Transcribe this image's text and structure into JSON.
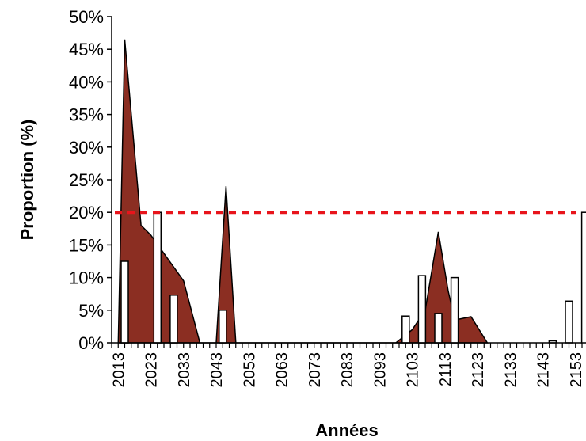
{
  "chart_data": {
    "type": "area",
    "title": "",
    "xlabel": "Années",
    "ylabel": "Proportion (%)",
    "ylim": [
      0,
      50
    ],
    "yticks": [
      "0%",
      "5%",
      "10%",
      "15%",
      "20%",
      "25%",
      "30%",
      "35%",
      "40%",
      "45%",
      "50%"
    ],
    "xlim": [
      2011,
      2155
    ],
    "xticks": [
      "2013",
      "2023",
      "2033",
      "2043",
      "2053",
      "2063",
      "2073",
      "2083",
      "2093",
      "2103",
      "2113",
      "2123",
      "2133",
      "2143",
      "2153"
    ],
    "grid": false,
    "legend": "none",
    "series": [
      {
        "type": "area",
        "color": "#8b2e22",
        "points": [
          [
            2013,
            0
          ],
          [
            2015,
            46.5
          ],
          [
            2020,
            18
          ],
          [
            2023,
            16.5
          ],
          [
            2033,
            9.5
          ],
          [
            2038,
            0
          ],
          [
            2043,
            0
          ],
          [
            2046,
            24
          ],
          [
            2049,
            0
          ],
          [
            2098,
            0
          ],
          [
            2103,
            2
          ],
          [
            2107,
            5
          ],
          [
            2111,
            17
          ],
          [
            2114,
            8
          ],
          [
            2116,
            3.5
          ],
          [
            2121,
            4
          ],
          [
            2126,
            0
          ]
        ]
      },
      {
        "type": "bar",
        "color": "#ffffff",
        "points": [
          [
            2015,
            12.5
          ],
          [
            2025,
            20
          ],
          [
            2030,
            7.3
          ],
          [
            2045,
            5
          ],
          [
            2101,
            4.1
          ],
          [
            2106,
            10.3
          ],
          [
            2111,
            4.5
          ],
          [
            2116,
            10
          ],
          [
            2146,
            0.3
          ],
          [
            2151,
            6.4
          ],
          [
            2156,
            20
          ]
        ]
      }
    ],
    "threshold": {
      "value": 20,
      "color": "#e8141b"
    }
  }
}
